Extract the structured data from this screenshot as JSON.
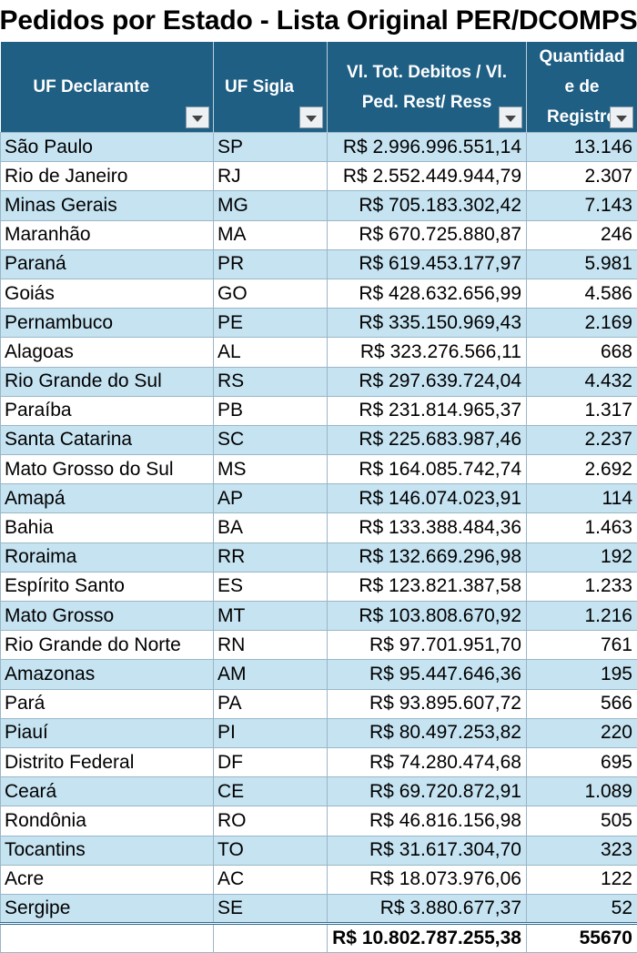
{
  "title": "Pedidos por Estado - Lista Original PER/DCOMPS",
  "headers": {
    "uf_declarante": "UF Declarante",
    "uf_sigla": "UF Sigla",
    "valor_l1": "Vl. Tot. Debitos / Vl.",
    "valor_l2": "Ped. Rest/ Ress",
    "qtd_l1": "Quantidad",
    "qtd_l2": "e de",
    "qtd_l3": "Registro"
  },
  "rows": [
    {
      "uf": "São Paulo",
      "sigla": "SP",
      "valor": "R$ 2.996.996.551,14",
      "qtd": "13.146"
    },
    {
      "uf": "Rio de Janeiro",
      "sigla": "RJ",
      "valor": "R$ 2.552.449.944,79",
      "qtd": "2.307"
    },
    {
      "uf": "Minas Gerais",
      "sigla": "MG",
      "valor": "R$ 705.183.302,42",
      "qtd": "7.143"
    },
    {
      "uf": "Maranhão",
      "sigla": "MA",
      "valor": "R$ 670.725.880,87",
      "qtd": "246"
    },
    {
      "uf": "Paraná",
      "sigla": "PR",
      "valor": "R$ 619.453.177,97",
      "qtd": "5.981"
    },
    {
      "uf": "Goiás",
      "sigla": "GO",
      "valor": "R$ 428.632.656,99",
      "qtd": "4.586"
    },
    {
      "uf": "Pernambuco",
      "sigla": "PE",
      "valor": "R$ 335.150.969,43",
      "qtd": "2.169"
    },
    {
      "uf": "Alagoas",
      "sigla": "AL",
      "valor": "R$ 323.276.566,11",
      "qtd": "668"
    },
    {
      "uf": "Rio Grande do Sul",
      "sigla": "RS",
      "valor": "R$ 297.639.724,04",
      "qtd": "4.432"
    },
    {
      "uf": "Paraíba",
      "sigla": "PB",
      "valor": "R$ 231.814.965,37",
      "qtd": "1.317"
    },
    {
      "uf": "Santa Catarina",
      "sigla": "SC",
      "valor": "R$ 225.683.987,46",
      "qtd": "2.237"
    },
    {
      "uf": "Mato Grosso do Sul",
      "sigla": "MS",
      "valor": "R$ 164.085.742,74",
      "qtd": "2.692"
    },
    {
      "uf": "Amapá",
      "sigla": "AP",
      "valor": "R$ 146.074.023,91",
      "qtd": "114"
    },
    {
      "uf": "Bahia",
      "sigla": "BA",
      "valor": "R$ 133.388.484,36",
      "qtd": "1.463"
    },
    {
      "uf": "Roraima",
      "sigla": "RR",
      "valor": "R$ 132.669.296,98",
      "qtd": "192"
    },
    {
      "uf": "Espírito Santo",
      "sigla": "ES",
      "valor": "R$ 123.821.387,58",
      "qtd": "1.233"
    },
    {
      "uf": "Mato Grosso",
      "sigla": "MT",
      "valor": "R$ 103.808.670,92",
      "qtd": "1.216"
    },
    {
      "uf": "Rio Grande do Norte",
      "sigla": "RN",
      "valor": "R$ 97.701.951,70",
      "qtd": "761"
    },
    {
      "uf": "Amazonas",
      "sigla": "AM",
      "valor": "R$ 95.447.646,36",
      "qtd": "195"
    },
    {
      "uf": "Pará",
      "sigla": "PA",
      "valor": "R$ 93.895.607,72",
      "qtd": "566"
    },
    {
      "uf": "Piauí",
      "sigla": "PI",
      "valor": "R$ 80.497.253,82",
      "qtd": "220"
    },
    {
      "uf": "Distrito Federal",
      "sigla": "DF",
      "valor": "R$ 74.280.474,68",
      "qtd": "695"
    },
    {
      "uf": "Ceará",
      "sigla": "CE",
      "valor": "R$ 69.720.872,91",
      "qtd": "1.089"
    },
    {
      "uf": "Rondônia",
      "sigla": "RO",
      "valor": "R$ 46.816.156,98",
      "qtd": "505"
    },
    {
      "uf": "Tocantins",
      "sigla": "TO",
      "valor": "R$ 31.617.304,70",
      "qtd": "323"
    },
    {
      "uf": "Acre",
      "sigla": "AC",
      "valor": "R$ 18.073.976,06",
      "qtd": "122"
    },
    {
      "uf": "Sergipe",
      "sigla": "SE",
      "valor": "R$ 3.880.677,37",
      "qtd": "52"
    }
  ],
  "totals": {
    "uf": "",
    "sigla": "",
    "valor": "R$ 10.802.787.255,38",
    "qtd": "55670"
  },
  "colors": {
    "header_bg": "#1f5f84",
    "band_row": "#c6e3f1",
    "plain_row": "#ffffff"
  },
  "icons": {
    "filter": "filter-dropdown-icon"
  }
}
